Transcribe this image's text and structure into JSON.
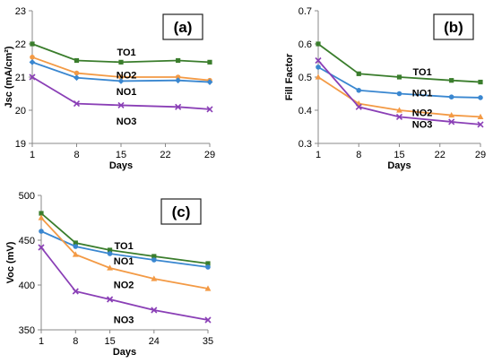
{
  "chart_data": [
    {
      "type": "line",
      "panel_label": "(a)",
      "xlabel": "Days",
      "ylabel": "Jsc (mA/cm²)",
      "xlim": [
        1,
        29
      ],
      "ylim": [
        19,
        23
      ],
      "x_ticks": [
        1,
        8,
        15,
        22,
        29
      ],
      "y_ticks": [
        19,
        20,
        21,
        22,
        23
      ],
      "grid": false,
      "x": [
        1,
        8,
        15,
        24,
        29
      ],
      "series": [
        {
          "name": "TO1",
          "color": "#3a7d2c",
          "marker": "square",
          "values": [
            22.0,
            21.5,
            21.45,
            21.5,
            21.45
          ]
        },
        {
          "name": "NO2",
          "color": "#f39a45",
          "marker": "circle",
          "values": [
            21.6,
            21.12,
            21.0,
            21.0,
            20.9
          ]
        },
        {
          "name": "NO1",
          "color": "#3a87d0",
          "marker": "diamond",
          "values": [
            21.45,
            20.98,
            20.88,
            20.9,
            20.85
          ]
        },
        {
          "name": "NO3",
          "color": "#8a3fb6",
          "marker": "x",
          "values": [
            21.0,
            20.2,
            20.15,
            20.1,
            20.03
          ]
        }
      ]
    },
    {
      "type": "line",
      "panel_label": "(b)",
      "xlabel": "Days",
      "ylabel": "Fill Factor",
      "xlim": [
        1,
        29
      ],
      "ylim": [
        0.3,
        0.7
      ],
      "x_ticks": [
        1,
        8,
        15,
        22,
        29
      ],
      "y_ticks": [
        "0.3",
        "0.4",
        "0.5",
        "0.6",
        "0.7"
      ],
      "grid": false,
      "x": [
        1,
        8,
        15,
        24,
        29
      ],
      "series": [
        {
          "name": "TO1",
          "color": "#3a7d2c",
          "marker": "square",
          "values": [
            0.6,
            0.51,
            0.5,
            0.49,
            0.485
          ]
        },
        {
          "name": "NO1",
          "color": "#3a87d0",
          "marker": "circle",
          "values": [
            0.53,
            0.46,
            0.45,
            0.44,
            0.438
          ]
        },
        {
          "name": "NO2",
          "color": "#f39a45",
          "marker": "triangle",
          "values": [
            0.5,
            0.42,
            0.4,
            0.385,
            0.38
          ]
        },
        {
          "name": "NO3",
          "color": "#8a3fb6",
          "marker": "x",
          "values": [
            0.55,
            0.41,
            0.38,
            0.365,
            0.357
          ]
        }
      ]
    },
    {
      "type": "line",
      "panel_label": "(c)",
      "xlabel": "Days",
      "ylabel": "Voc (mV)",
      "xlim": [
        1,
        35
      ],
      "ylim": [
        350,
        500
      ],
      "x_ticks": [
        1,
        8,
        15,
        24,
        35
      ],
      "y_ticks": [
        350,
        400,
        450,
        500
      ],
      "grid": false,
      "x": [
        1,
        8,
        15,
        24,
        35
      ],
      "series": [
        {
          "name": "TO1",
          "color": "#3a7d2c",
          "marker": "square",
          "values": [
            480,
            447,
            439,
            432,
            424
          ]
        },
        {
          "name": "NO1",
          "color": "#3a87d0",
          "marker": "circle",
          "values": [
            460,
            443,
            435,
            428,
            420
          ]
        },
        {
          "name": "NO2",
          "color": "#f39a45",
          "marker": "triangle",
          "values": [
            475,
            434,
            419,
            407,
            396
          ]
        },
        {
          "name": "NO3",
          "color": "#8a3fb6",
          "marker": "x",
          "values": [
            442,
            393,
            384,
            372,
            361
          ]
        }
      ]
    }
  ]
}
